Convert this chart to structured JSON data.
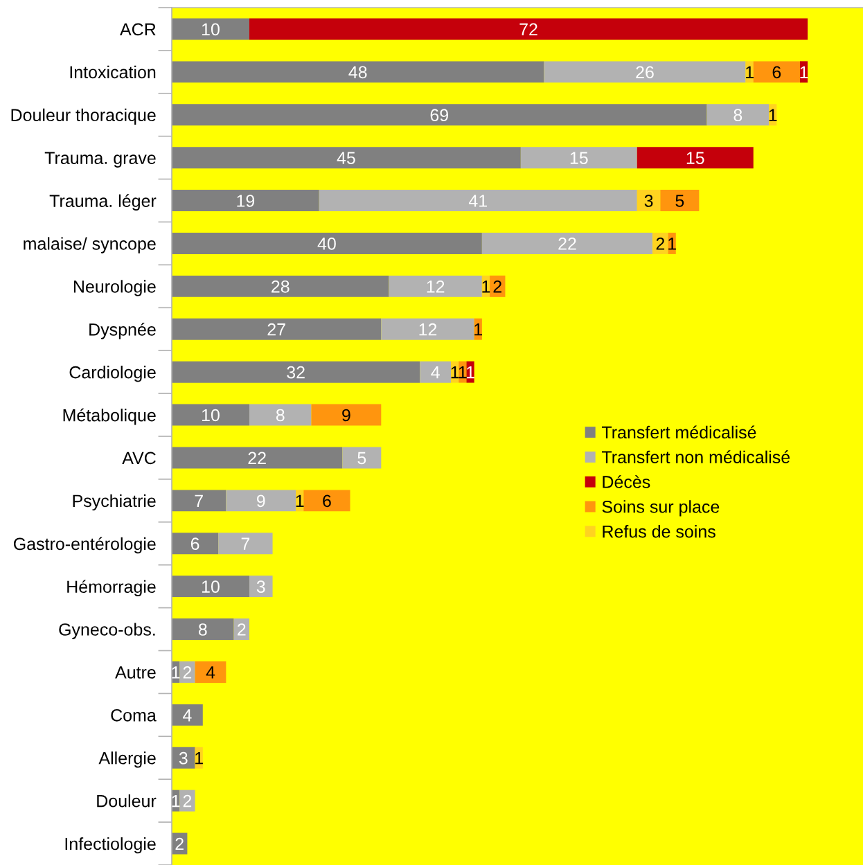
{
  "chart_data": {
    "type": "bar",
    "orientation": "horizontal",
    "stacked": true,
    "data_labels": true,
    "legend": "right",
    "tick_labels": "y",
    "categories": [
      "ACR",
      "Intoxication",
      "Douleur thoracique",
      "Trauma. grave",
      "Trauma. léger",
      "malaise/ syncope",
      "Neurologie",
      "Dyspnée",
      "Cardiologie",
      "Métabolique",
      "AVC",
      "Psychiatrie",
      "Gastro-entérologie",
      "Hémorragie",
      "Gyneco-obs.",
      "Autre",
      "Coma",
      "Allergie",
      "Douleur",
      "Infectiologie"
    ],
    "series": [
      {
        "name": "Transfert médicalisé",
        "color": "#808080",
        "values": [
          10,
          48,
          69,
          45,
          19,
          40,
          28,
          27,
          32,
          10,
          22,
          7,
          6,
          10,
          8,
          1,
          4,
          3,
          1,
          2
        ]
      },
      {
        "name": "Transfert non médicalisé",
        "color": "#b2b2b2",
        "values": [
          null,
          26,
          8,
          15,
          41,
          22,
          12,
          12,
          4,
          8,
          5,
          9,
          7,
          3,
          2,
          2,
          null,
          null,
          2,
          null
        ]
      },
      {
        "name": "Refus de soins",
        "color": "#ffd320",
        "values": [
          null,
          1,
          1,
          null,
          3,
          2,
          1,
          null,
          1,
          null,
          null,
          1,
          null,
          null,
          null,
          null,
          null,
          1,
          null,
          null
        ]
      },
      {
        "name": "Soins sur place",
        "color": "#ff950e",
        "values": [
          null,
          6,
          null,
          null,
          5,
          1,
          2,
          1,
          1,
          9,
          null,
          6,
          null,
          null,
          null,
          4,
          null,
          null,
          null,
          null
        ]
      },
      {
        "name": "Décès",
        "color": "#c5000b",
        "values": [
          72,
          1,
          null,
          15,
          null,
          null,
          null,
          null,
          1,
          null,
          null,
          null,
          null,
          null,
          null,
          null,
          null,
          null,
          null,
          null
        ]
      }
    ]
  }
}
